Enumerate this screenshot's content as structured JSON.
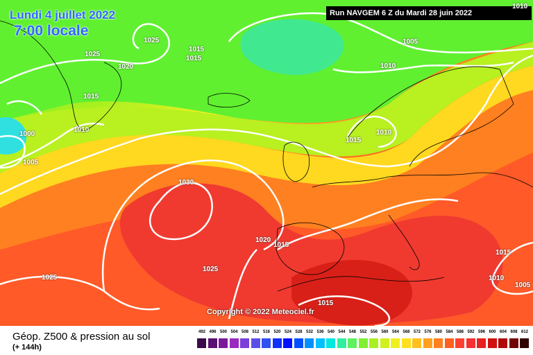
{
  "header": {
    "date": "Lundi 4 juillet 2022",
    "time": "7:00 locale",
    "run": "Run NAVGEM 6 Z du Mardi 28 juin 2022"
  },
  "copyright": "Copyright © 2022 Meteociel.fr",
  "footer": {
    "title": "Géop. Z500 & pression au sol",
    "subtitle": "(+ 144h)"
  },
  "isobars": {
    "l1020": "1020",
    "l1025a": "1025",
    "l1025b": "1025",
    "l1015a": "1015",
    "l1015b": "1015",
    "l1020b": "1020",
    "l1015c": "1015",
    "l1010a": "1010",
    "l1000": "1000",
    "l1005a": "1005",
    "l1005b": "1005",
    "l1010b": "1010",
    "l1010c": "1010",
    "l1015d": "1015",
    "l1030": "1030",
    "l1020c": "1020",
    "l1015e": "1015",
    "l1025c": "1025",
    "l1025d": "1025",
    "l1015f": "1015",
    "l1015g": "1015",
    "l1010d": "1010",
    "l1005c": "1005",
    "l1010e": "1010"
  },
  "legend": {
    "labels": [
      "492",
      "496",
      "500",
      "504",
      "508",
      "512",
      "516",
      "520",
      "524",
      "528",
      "532",
      "536",
      "540",
      "544",
      "548",
      "552",
      "556",
      "560",
      "564",
      "568",
      "572",
      "576",
      "580",
      "584",
      "588",
      "592",
      "596",
      "600",
      "604",
      "608",
      "612"
    ],
    "colors": [
      "#3a0a4a",
      "#5a1070",
      "#7a1a9a",
      "#9a2ac0",
      "#7a40d8",
      "#5a50e8",
      "#3050f0",
      "#1030f8",
      "#0010ff",
      "#0050ff",
      "#0090ff",
      "#00c0ff",
      "#00e8e0",
      "#30f0a0",
      "#60f060",
      "#80f030",
      "#a8f020",
      "#d0f020",
      "#f0f020",
      "#ffe020",
      "#ffc020",
      "#ffa020",
      "#ff8020",
      "#ff6020",
      "#ff4030",
      "#f83030",
      "#e82020",
      "#d01010",
      "#b00808",
      "#700000",
      "#300000"
    ]
  }
}
